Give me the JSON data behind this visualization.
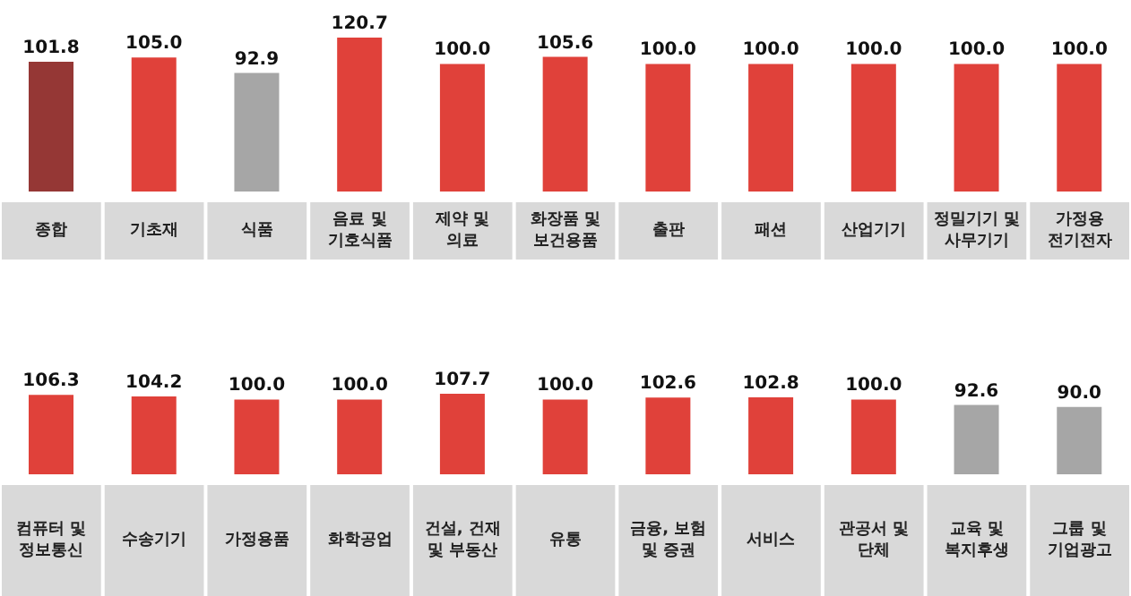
{
  "chart_data": [
    {
      "type": "bar",
      "categories": [
        "종합",
        "기초재",
        "식품",
        "음료 및 기호식품",
        "제약 및 의료",
        "화장품 및 보건용품",
        "출판",
        "패션",
        "산업기기",
        "정밀기기 및 사무기기",
        "가정용 전기전자"
      ],
      "values": [
        101.8,
        105.0,
        92.9,
        120.7,
        100.0,
        105.6,
        100.0,
        100.0,
        100.0,
        100.0,
        100.0
      ],
      "value_labels": [
        "101.8",
        "105.0",
        "92.9",
        "120.7",
        "100.0",
        "105.6",
        "100.0",
        "100.0",
        "100.0",
        "100.0",
        "100.0"
      ],
      "colors": [
        "#953735",
        "#e0413a",
        "#a6a6a6",
        "#e0413a",
        "#e0413a",
        "#e0413a",
        "#e0413a",
        "#e0413a",
        "#e0413a",
        "#e0413a",
        "#e0413a"
      ],
      "legend": false,
      "grid": false
    },
    {
      "type": "bar",
      "categories": [
        "컴퓨터 및 정보통신",
        "수송기기",
        "가정용품",
        "화학공업",
        "건설, 건재 및 부동산",
        "유통",
        "금융, 보험 및 증권",
        "서비스",
        "관공서 및 단체",
        "교육 및 복지후생",
        "그룹 및 기업광고"
      ],
      "values": [
        106.3,
        104.2,
        100.0,
        100.0,
        107.7,
        100.0,
        102.6,
        102.8,
        100.0,
        92.6,
        90.0
      ],
      "value_labels": [
        "106.3",
        "104.2",
        "100.0",
        "100.0",
        "107.7",
        "100.0",
        "102.6",
        "102.8",
        "100.0",
        "92.6",
        "90.0"
      ],
      "colors": [
        "#e0413a",
        "#e0413a",
        "#e0413a",
        "#e0413a",
        "#e0413a",
        "#e0413a",
        "#e0413a",
        "#e0413a",
        "#e0413a",
        "#a6a6a6",
        "#a6a6a6"
      ],
      "legend": false,
      "grid": false
    }
  ]
}
